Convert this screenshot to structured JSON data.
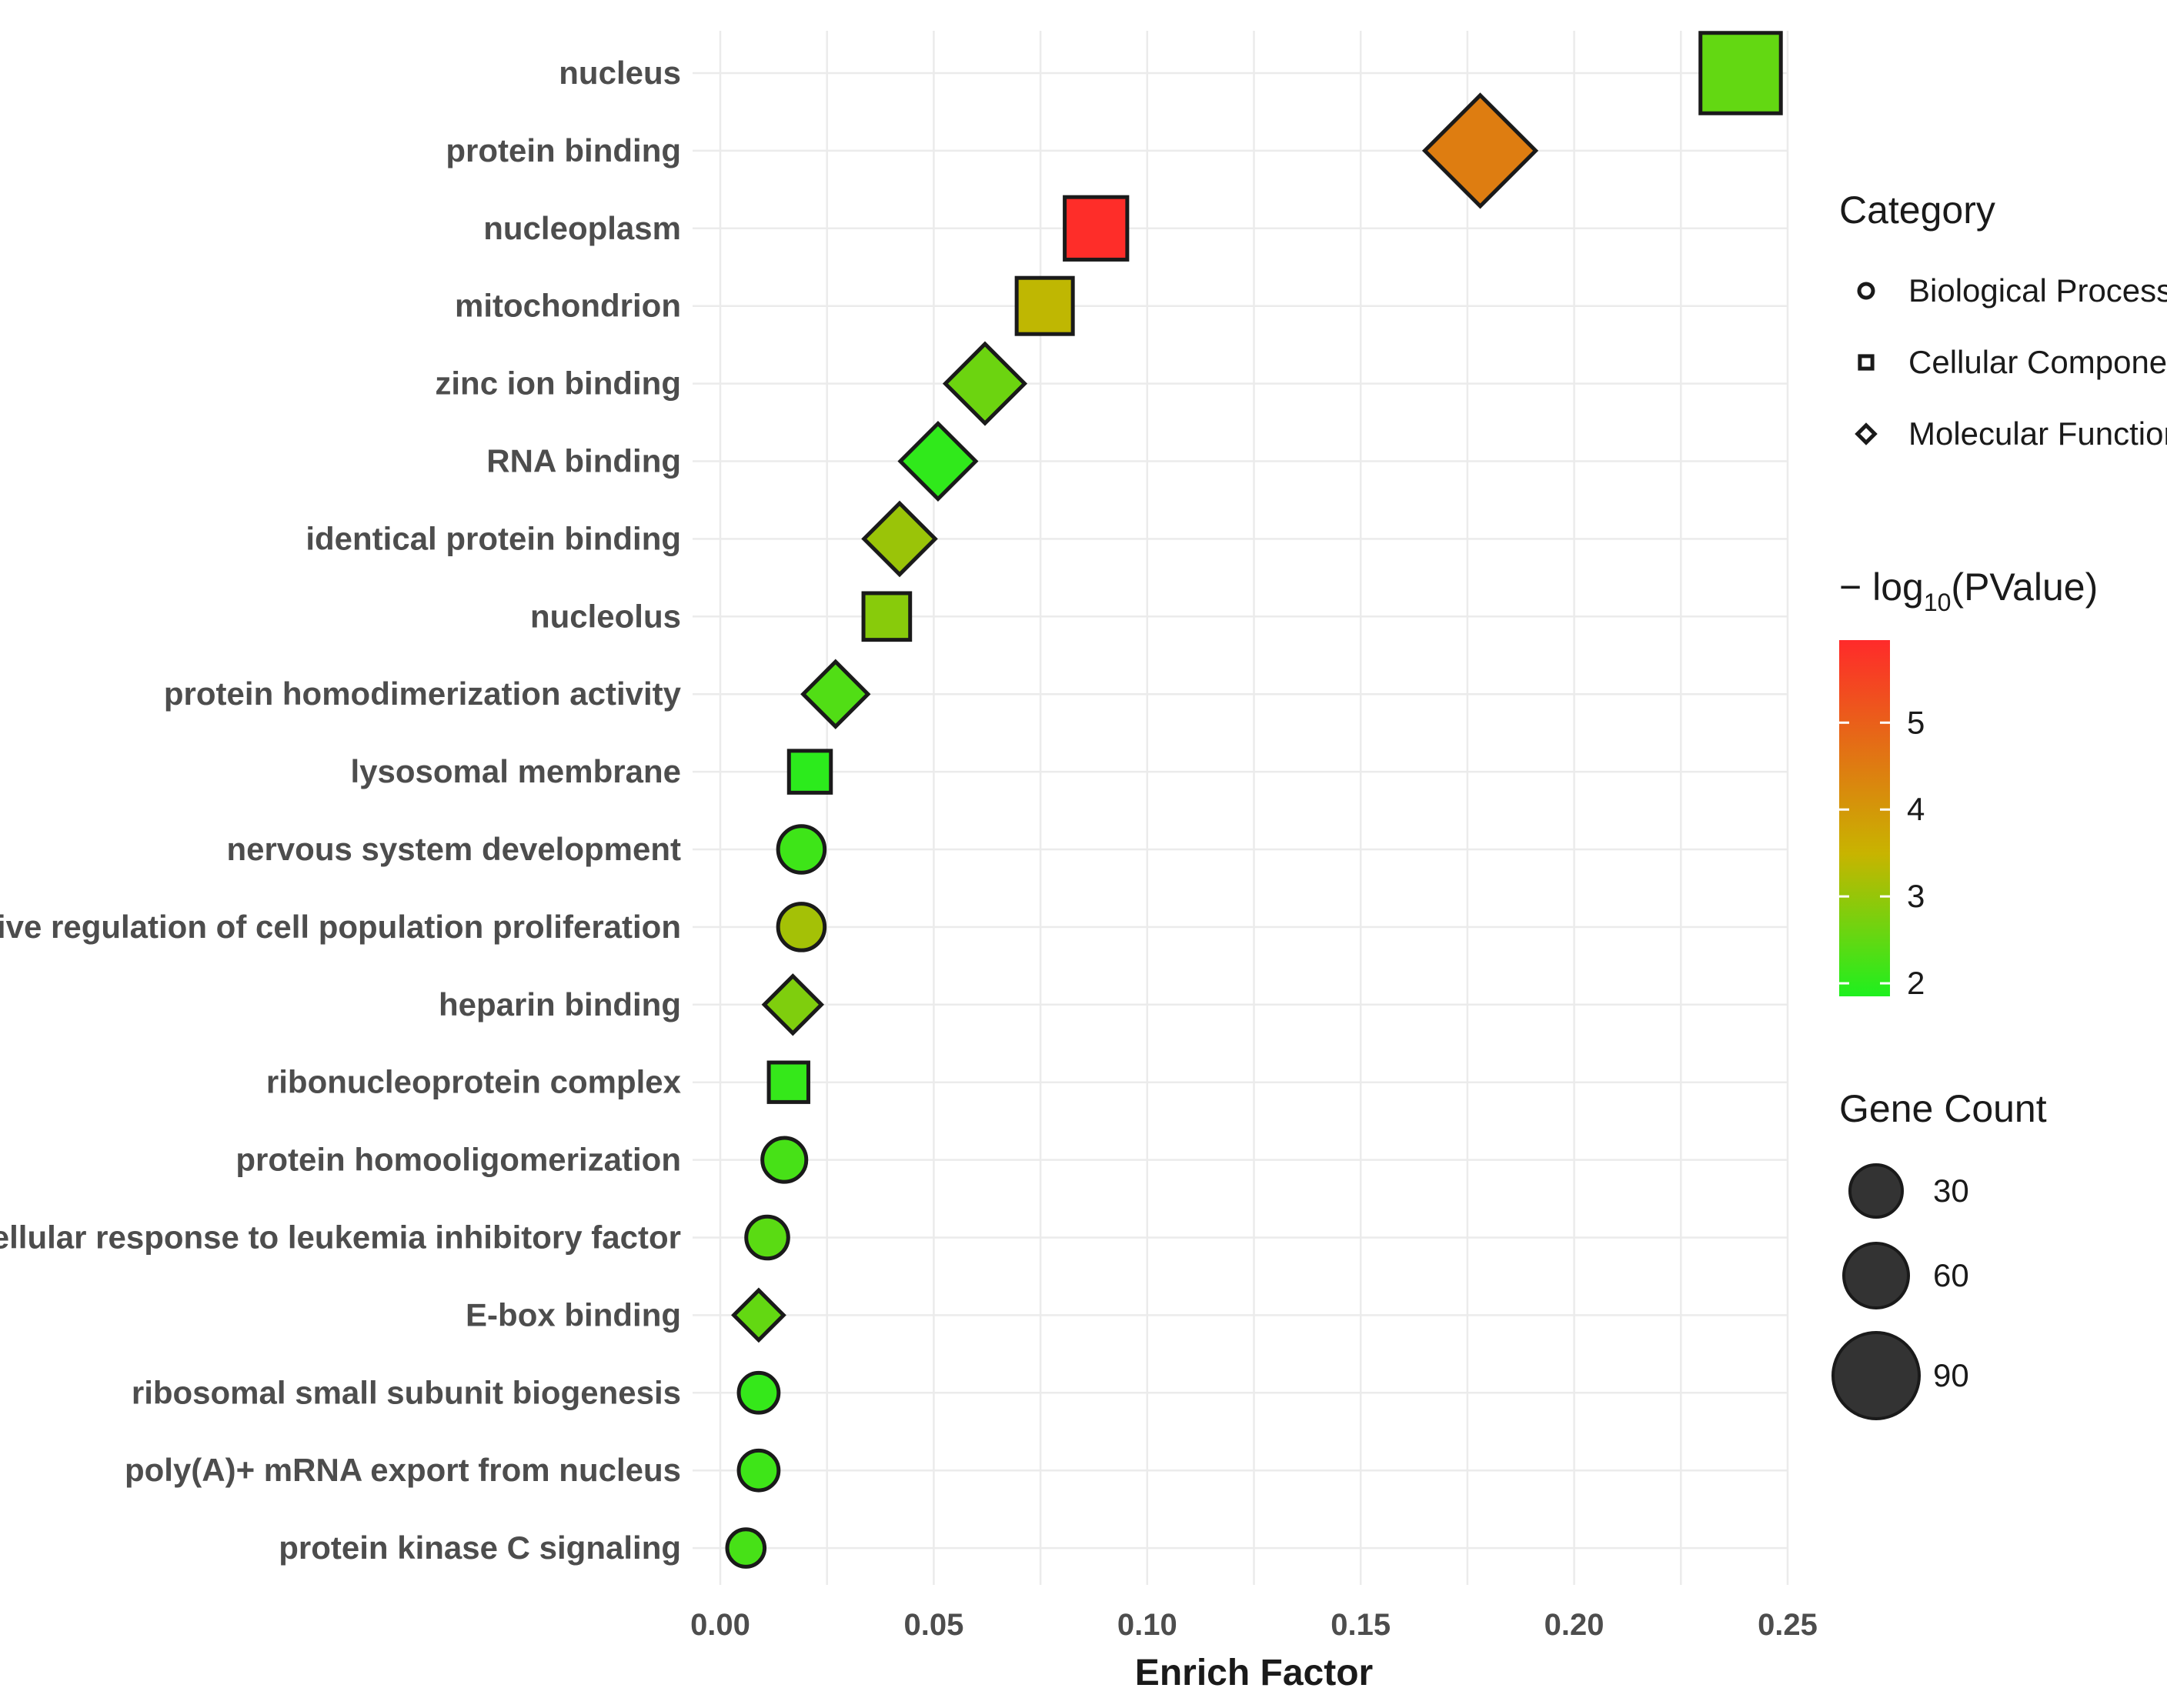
{
  "chart_data": {
    "type": "scatter",
    "title": "",
    "xlabel": "Enrich Factor",
    "ylabel": "",
    "xlim": [
      0,
      0.25
    ],
    "xticks": [
      0,
      0.05,
      0.1,
      0.15,
      0.2,
      0.25
    ],
    "xtick_labels": [
      "0.00",
      "0.05",
      "0.10",
      "0.15",
      "0.20",
      "0.25"
    ],
    "grid": true,
    "points": [
      {
        "term": "nucleus",
        "category": "Cellular Component",
        "enrich_factor": 0.239,
        "neg_log10_p": 2.6,
        "gene_count": 110
      },
      {
        "term": "protein binding",
        "category": "Molecular Function",
        "enrich_factor": 0.178,
        "neg_log10_p": 4.6,
        "gene_count": 108
      },
      {
        "term": "nucleoplasm",
        "category": "Cellular Component",
        "enrich_factor": 0.088,
        "neg_log10_p": 5.9,
        "gene_count": 55
      },
      {
        "term": "mitochondrion",
        "category": "Cellular Component",
        "enrich_factor": 0.076,
        "neg_log10_p": 3.6,
        "gene_count": 40
      },
      {
        "term": "zinc ion binding",
        "category": "Molecular Function",
        "enrich_factor": 0.062,
        "neg_log10_p": 2.7,
        "gene_count": 42
      },
      {
        "term": "RNA binding",
        "category": "Molecular Function",
        "enrich_factor": 0.051,
        "neg_log10_p": 2.05,
        "gene_count": 36
      },
      {
        "term": "identical protein binding",
        "category": "Molecular Function",
        "enrich_factor": 0.042,
        "neg_log10_p": 3.2,
        "gene_count": 30
      },
      {
        "term": "nucleolus",
        "category": "Cellular Component",
        "enrich_factor": 0.039,
        "neg_log10_p": 3.0,
        "gene_count": 22
      },
      {
        "term": "protein homodimerization activity",
        "category": "Molecular Function",
        "enrich_factor": 0.027,
        "neg_log10_p": 2.4,
        "gene_count": 22
      },
      {
        "term": "lysosomal membrane",
        "category": "Cellular Component",
        "enrich_factor": 0.021,
        "neg_log10_p": 2.0,
        "gene_count": 15
      },
      {
        "term": "nervous system development",
        "category": "Biological Process",
        "enrich_factor": 0.019,
        "neg_log10_p": 2.2,
        "gene_count": 15
      },
      {
        "term": "negative regulation of cell population proliferation",
        "category": "Biological Process",
        "enrich_factor": 0.019,
        "neg_log10_p": 3.3,
        "gene_count": 15
      },
      {
        "term": "heparin binding",
        "category": "Molecular Function",
        "enrich_factor": 0.017,
        "neg_log10_p": 2.9,
        "gene_count": 14
      },
      {
        "term": "ribonucleoprotein complex",
        "category": "Cellular Component",
        "enrich_factor": 0.016,
        "neg_log10_p": 2.1,
        "gene_count": 12
      },
      {
        "term": "protein homooligomerization",
        "category": "Biological Process",
        "enrich_factor": 0.015,
        "neg_log10_p": 2.3,
        "gene_count": 12
      },
      {
        "term": "cellular response to leukemia inhibitory factor",
        "category": "Biological Process",
        "enrich_factor": 0.011,
        "neg_log10_p": 2.5,
        "gene_count": 10
      },
      {
        "term": "E-box binding",
        "category": "Molecular Function",
        "enrich_factor": 0.009,
        "neg_log10_p": 2.6,
        "gene_count": 8
      },
      {
        "term": "ribosomal small subunit biogenesis",
        "category": "Biological Process",
        "enrich_factor": 0.009,
        "neg_log10_p": 2.1,
        "gene_count": 8
      },
      {
        "term": "poly(A)+ mRNA export from nucleus",
        "category": "Biological Process",
        "enrich_factor": 0.009,
        "neg_log10_p": 2.2,
        "gene_count": 8
      },
      {
        "term": "protein kinase C signaling",
        "category": "Biological Process",
        "enrich_factor": 0.006,
        "neg_log10_p": 2.3,
        "gene_count": 6
      }
    ],
    "legend": {
      "category_title": "Category",
      "categories": [
        {
          "label": "Biological Process",
          "shape": "circle"
        },
        {
          "label": "Cellular Component",
          "shape": "square"
        },
        {
          "label": "Molecular Function",
          "shape": "diamond"
        }
      ],
      "color_title_prefix": "− log",
      "color_title_sub": "10",
      "color_title_suffix": "(PValue)",
      "color_range": [
        1.85,
        5.95
      ],
      "color_ticks": [
        2,
        3,
        4,
        5
      ],
      "color_tick_labels": [
        "2",
        "3",
        "4",
        "5"
      ],
      "color_low": "#1ef01e",
      "color_mid": "#c8b400",
      "color_high": "#ff2a2a",
      "size_title": "Gene Count",
      "size_items": [
        30,
        60,
        90
      ],
      "size_labels": [
        "30",
        "60",
        "90"
      ],
      "size_fill": "#333333"
    }
  }
}
